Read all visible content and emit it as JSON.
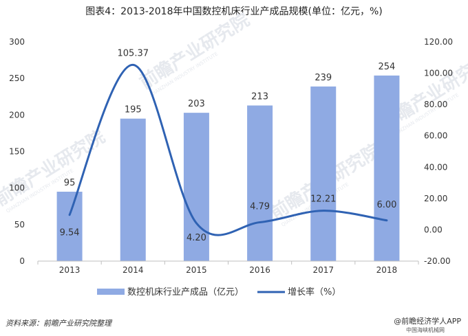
{
  "title": "图表4：2013-2018年中国数控机床行业产成品规模(单位：亿元，%)",
  "footer": {
    "source": "资料来源：前瞻产业研究院整理",
    "brand": "@前瞻经济学人APP",
    "brand_sub": "中国海峡机械网"
  },
  "watermark": {
    "text": "前瞻产业研究院",
    "sub": "QIANZHAN INDUSTRY INSTITUTE"
  },
  "colors": {
    "bar": "#8faae3",
    "line": "#2f62b3",
    "axis": "#bfbfbf",
    "text": "#333333",
    "watermark": "#e6e9ee"
  },
  "chart_data": {
    "type": "bar+line",
    "categories": [
      "2013",
      "2014",
      "2015",
      "2016",
      "2017",
      "2018"
    ],
    "series": [
      {
        "name": "数控机床行业产成品（亿元）",
        "type": "bar",
        "axis": "left",
        "values": [
          95,
          195,
          203,
          213,
          239,
          254
        ],
        "labels": [
          "95",
          "195",
          "203",
          "213",
          "239",
          "254"
        ]
      },
      {
        "name": "增长率（%）",
        "type": "line",
        "axis": "right",
        "values": [
          9.54,
          105.37,
          4.2,
          4.79,
          12.21,
          6.0
        ],
        "labels": [
          "9.54",
          "105.37",
          "4.20",
          "4.79",
          "12.21",
          "6.00"
        ]
      }
    ],
    "y_left": {
      "min": 0,
      "max": 300,
      "step": 50,
      "ticks": [
        "0",
        "50",
        "100",
        "150",
        "200",
        "250",
        "300"
      ]
    },
    "y_right": {
      "min": -20,
      "max": 120,
      "step": 20,
      "ticks": [
        "-20.00",
        "0.00",
        "20.00",
        "40.00",
        "60.00",
        "80.00",
        "100.00",
        "120.00"
      ]
    },
    "legend_position": "bottom"
  }
}
